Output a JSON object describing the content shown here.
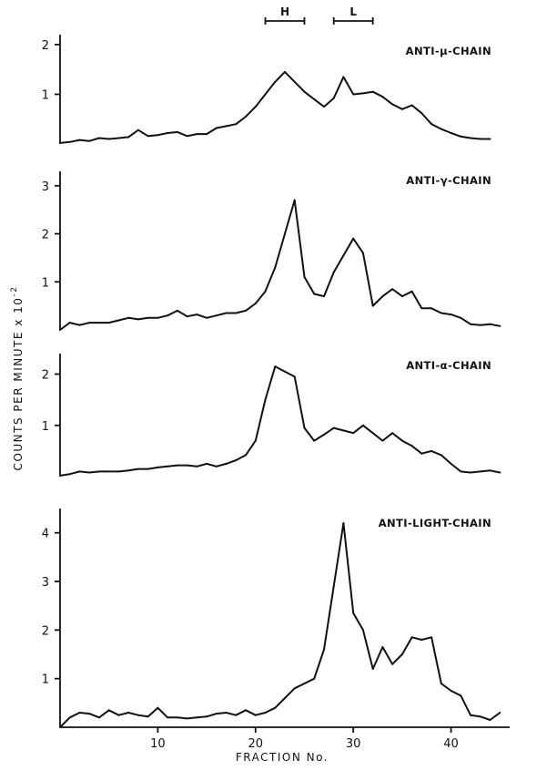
{
  "chart_data": [
    {
      "type": "line",
      "panel_label": "ANTI-μ-CHAIN",
      "y_ticks": [
        1,
        2
      ],
      "ylim": [
        0,
        2.2
      ],
      "x": [
        0,
        1,
        2,
        3,
        4,
        5,
        6,
        7,
        8,
        9,
        10,
        11,
        12,
        13,
        14,
        15,
        16,
        17,
        18,
        19,
        20,
        21,
        22,
        23,
        24,
        25,
        26,
        27,
        28,
        29,
        30,
        31,
        32,
        33,
        34,
        35,
        36,
        37,
        38,
        39,
        40,
        41,
        42,
        43,
        44
      ],
      "values": [
        0.02,
        0.04,
        0.08,
        0.06,
        0.12,
        0.1,
        0.12,
        0.14,
        0.28,
        0.16,
        0.18,
        0.22,
        0.24,
        0.16,
        0.2,
        0.2,
        0.32,
        0.36,
        0.4,
        0.55,
        0.75,
        1.0,
        1.25,
        1.45,
        1.25,
        1.05,
        0.9,
        0.75,
        0.92,
        1.35,
        1.0,
        1.02,
        1.05,
        0.95,
        0.8,
        0.7,
        0.78,
        0.62,
        0.4,
        0.3,
        0.22,
        0.15,
        0.12,
        0.1,
        0.1
      ]
    },
    {
      "type": "line",
      "panel_label": "ANTI-γ-CHAIN",
      "y_ticks": [
        1,
        2,
        3
      ],
      "ylim": [
        0,
        3.3
      ],
      "x": [
        0,
        1,
        2,
        3,
        4,
        5,
        6,
        7,
        8,
        9,
        10,
        11,
        12,
        13,
        14,
        15,
        16,
        17,
        18,
        19,
        20,
        21,
        22,
        23,
        24,
        25,
        26,
        27,
        28,
        29,
        30,
        31,
        32,
        33,
        34,
        35,
        36,
        37,
        38,
        39,
        40,
        41,
        42,
        43,
        44,
        45
      ],
      "values": [
        0.0,
        0.15,
        0.1,
        0.15,
        0.15,
        0.15,
        0.2,
        0.25,
        0.22,
        0.25,
        0.25,
        0.3,
        0.4,
        0.28,
        0.32,
        0.25,
        0.3,
        0.35,
        0.35,
        0.4,
        0.55,
        0.8,
        1.3,
        2.0,
        2.7,
        1.1,
        0.75,
        0.7,
        1.2,
        1.55,
        1.9,
        1.6,
        0.5,
        0.7,
        0.85,
        0.7,
        0.8,
        0.45,
        0.45,
        0.35,
        0.32,
        0.25,
        0.12,
        0.1,
        0.12,
        0.08
      ]
    },
    {
      "type": "line",
      "panel_label": "ANTI-α-CHAIN",
      "y_ticks": [
        1,
        2
      ],
      "ylim": [
        0,
        2.4
      ],
      "x": [
        0,
        1,
        2,
        3,
        4,
        5,
        6,
        7,
        8,
        9,
        10,
        11,
        12,
        13,
        14,
        15,
        16,
        17,
        18,
        19,
        20,
        21,
        22,
        23,
        24,
        25,
        26,
        27,
        28,
        29,
        30,
        31,
        32,
        33,
        34,
        35,
        36,
        37,
        38,
        39,
        40,
        41,
        42,
        43,
        44,
        45
      ],
      "values": [
        0.02,
        0.05,
        0.1,
        0.08,
        0.1,
        0.1,
        0.1,
        0.12,
        0.15,
        0.15,
        0.18,
        0.2,
        0.22,
        0.22,
        0.2,
        0.25,
        0.2,
        0.25,
        0.32,
        0.42,
        0.7,
        1.5,
        2.15,
        2.05,
        1.95,
        0.95,
        0.7,
        0.82,
        0.95,
        0.9,
        0.85,
        1.0,
        0.85,
        0.7,
        0.85,
        0.7,
        0.6,
        0.45,
        0.5,
        0.42,
        0.25,
        0.1,
        0.08,
        0.1,
        0.12,
        0.08
      ]
    },
    {
      "type": "line",
      "panel_label": "ANTI-LIGHT-CHAIN",
      "y_ticks": [
        1,
        2,
        3,
        4
      ],
      "ylim": [
        0,
        4.5
      ],
      "x": [
        0,
        1,
        2,
        3,
        4,
        5,
        6,
        7,
        8,
        9,
        10,
        11,
        12,
        13,
        14,
        15,
        16,
        17,
        18,
        19,
        20,
        21,
        22,
        23,
        24,
        25,
        26,
        27,
        28,
        29,
        30,
        31,
        32,
        33,
        34,
        35,
        36,
        37,
        38,
        39,
        40,
        41,
        42,
        43,
        44,
        45
      ],
      "values": [
        0.0,
        0.2,
        0.3,
        0.28,
        0.2,
        0.35,
        0.25,
        0.3,
        0.25,
        0.22,
        0.4,
        0.2,
        0.2,
        0.18,
        0.2,
        0.22,
        0.28,
        0.3,
        0.25,
        0.35,
        0.25,
        0.3,
        0.4,
        0.6,
        0.8,
        0.9,
        1.0,
        1.6,
        2.9,
        4.2,
        2.35,
        2.0,
        1.2,
        1.65,
        1.3,
        1.5,
        1.85,
        1.8,
        1.85,
        0.9,
        0.75,
        0.65,
        0.25,
        0.22,
        0.15,
        0.3
      ]
    }
  ],
  "x_axis": {
    "title": "FRACTION No.",
    "ticks": [
      10,
      20,
      30,
      40
    ],
    "xlim": [
      0,
      46
    ]
  },
  "y_axis": {
    "title": "COUNTS PER MINUTE x 10",
    "exponent": "-2"
  },
  "markers": [
    {
      "label": "H",
      "from": 21,
      "to": 25
    },
    {
      "label": "L",
      "from": 28,
      "to": 32
    }
  ]
}
